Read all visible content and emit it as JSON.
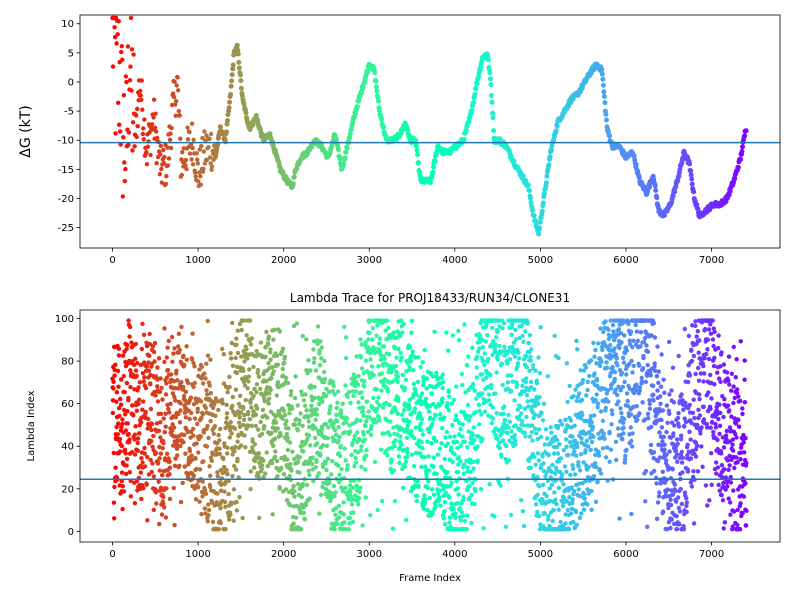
{
  "chart_data": [
    {
      "type": "scatter",
      "title": "",
      "xlabel": "",
      "ylabel": "ΔG (kT)",
      "xlim": [
        -380,
        7800
      ],
      "ylim": [
        -28.5,
        11.5
      ],
      "xticks": [
        0,
        1000,
        2000,
        3000,
        4000,
        5000,
        6000,
        7000
      ],
      "yticks": [
        10,
        5,
        0,
        -5,
        -10,
        -15,
        -20,
        -25
      ],
      "hline": -10.4,
      "hline_color": "#1f77b4",
      "colormap": "rainbow (reversed: red at frame 0 → violet at last frame)",
      "n_frames": 7410,
      "grid": false,
      "series": [
        {
          "x": [
            0,
            40,
            80,
            120,
            160,
            200,
            260,
            320,
            400,
            480,
            560,
            640,
            700,
            760,
            800,
            860,
            940,
            1000,
            1080,
            1150,
            1200,
            1260,
            1320,
            1380,
            1420,
            1460,
            1520,
            1600,
            1680,
            1760,
            1840,
            1900,
            1960,
            2040,
            2100,
            2140,
            2200,
            2280,
            2360,
            2440,
            2520,
            2600,
            2680,
            2760,
            2840,
            2920,
            3000,
            3060,
            3120,
            3200,
            3280,
            3360,
            3420,
            3480,
            3540,
            3600,
            3660,
            3720,
            3800,
            3860,
            3940,
            4020,
            4100,
            4180,
            4260,
            4320,
            4380,
            4420,
            4460,
            4520,
            4600,
            4700,
            4780,
            4860,
            4920,
            4980,
            5040,
            5120,
            5200,
            5280,
            5360,
            5440,
            5520,
            5600,
            5660,
            5720,
            5780,
            5840,
            5920,
            6000,
            6080,
            6160,
            6240,
            6320,
            6380,
            6440,
            6520,
            6600,
            6680,
            6740,
            6800,
            6860,
            6940,
            7020,
            7100,
            7180,
            7260,
            7340,
            7400
          ],
          "y": [
            10,
            0,
            2,
            -8,
            -12,
            5,
            -10,
            0,
            -12,
            -6,
            -15,
            -14,
            -5,
            0,
            -14,
            -12,
            -10,
            -16,
            -12,
            -11,
            -13,
            -8,
            -10,
            -2,
            5,
            6,
            -3,
            -8,
            -6,
            -10,
            -9,
            -12,
            -15,
            -17,
            -18,
            -15,
            -13,
            -12,
            -10,
            -11,
            -13,
            -9,
            -15,
            -10,
            -5,
            -1,
            3,
            2,
            -5,
            -10,
            -10,
            -9,
            -7,
            -10,
            -10,
            -17,
            -17,
            -17,
            -11,
            -12,
            -12,
            -11,
            -10,
            -6,
            0,
            4,
            5,
            0,
            -10,
            -10,
            -11,
            -14,
            -16,
            -18,
            -23,
            -26,
            -20,
            -12,
            -7,
            -5,
            -3,
            -2,
            0,
            2,
            3,
            2,
            -8,
            -11,
            -11,
            -13,
            -12,
            -17,
            -19,
            -16,
            -22,
            -23,
            -21,
            -17,
            -12,
            -14,
            -20,
            -23,
            -22,
            -21,
            -21,
            -20,
            -17,
            -13,
            -8
          ]
        }
      ]
    },
    {
      "type": "scatter",
      "title": "Lambda Trace for PROJ18433/RUN34/CLONE31",
      "xlabel": "Frame Index",
      "ylabel": "Lambda Index",
      "xlim": [
        -380,
        7800
      ],
      "ylim": [
        -5,
        104
      ],
      "xticks": [
        0,
        1000,
        2000,
        3000,
        4000,
        5000,
        6000,
        7000
      ],
      "yticks": [
        0,
        20,
        40,
        60,
        80,
        100
      ],
      "hline": 24.5,
      "hline_color": "#1f77b4",
      "colormap": "rainbow (reversed: red at frame 0 → violet at last frame)",
      "n_frames": 7410,
      "grid": false,
      "series": [
        {
          "note_lambda_range": [
            1,
            99
          ],
          "x": [
            0,
            60,
            120,
            180,
            260,
            340,
            420,
            500,
            580,
            660,
            740,
            820,
            900,
            980,
            1060,
            1140,
            1220,
            1300,
            1380,
            1460,
            1540,
            1620,
            1700,
            1780,
            1860,
            1940,
            2020,
            2100,
            2180,
            2260,
            2340,
            2420,
            2500,
            2580,
            2660,
            2740,
            2820,
            2900,
            2980,
            3060,
            3140,
            3220,
            3300,
            3380,
            3460,
            3540,
            3620,
            3700,
            3780,
            3860,
            3940,
            4020,
            4100,
            4180,
            4260,
            4340,
            4420,
            4500,
            4580,
            4660,
            4740,
            4820,
            4900,
            4980,
            5060,
            5140,
            5220,
            5300,
            5380,
            5460,
            5540,
            5620,
            5700,
            5780,
            5860,
            5940,
            6020,
            6100,
            6180,
            6260,
            6340,
            6420,
            6500,
            6580,
            6660,
            6740,
            6820,
            6900,
            6980,
            7060,
            7140,
            7220,
            7300,
            7380
          ],
          "y": [
            50,
            60,
            40,
            70,
            55,
            45,
            60,
            50,
            40,
            55,
            65,
            50,
            45,
            55,
            40,
            35,
            25,
            30,
            40,
            60,
            75,
            70,
            55,
            60,
            65,
            55,
            50,
            30,
            25,
            40,
            55,
            60,
            50,
            35,
            25,
            30,
            40,
            50,
            70,
            85,
            80,
            65,
            60,
            70,
            55,
            50,
            45,
            40,
            45,
            40,
            30,
            20,
            25,
            35,
            55,
            80,
            85,
            75,
            65,
            70,
            80,
            75,
            55,
            30,
            20,
            15,
            20,
            25,
            30,
            40,
            45,
            55,
            60,
            70,
            75,
            70,
            65,
            80,
            90,
            85,
            60,
            40,
            30,
            25,
            30,
            45,
            70,
            85,
            80,
            60,
            45,
            35,
            30,
            25
          ]
        }
      ]
    }
  ]
}
